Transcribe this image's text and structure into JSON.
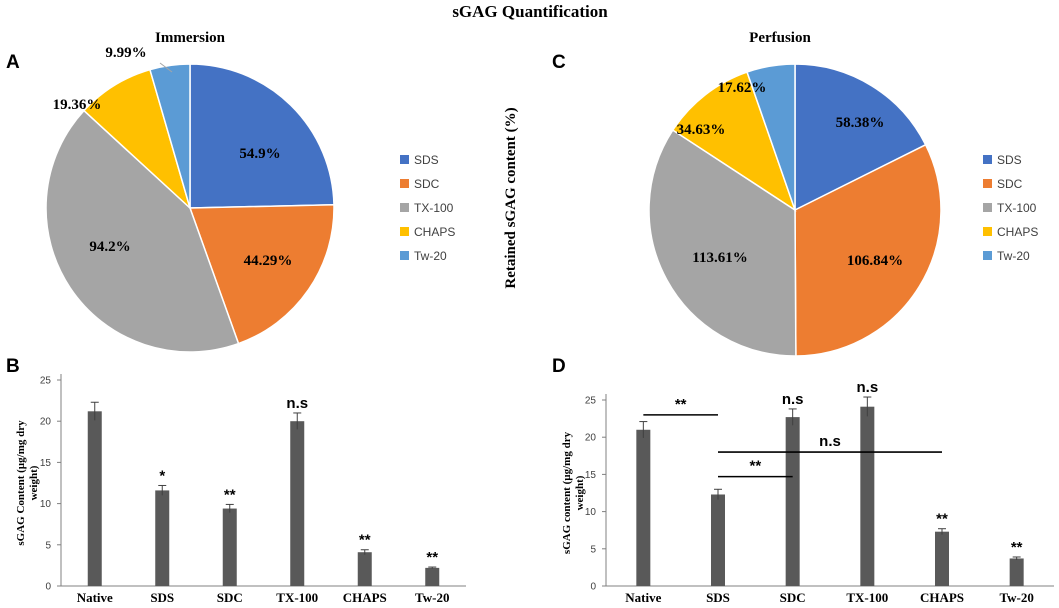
{
  "figure_title": "sGAG Quantification",
  "shared_ylabel": "Retained sGAG content (%)",
  "colors": {
    "SDS": "#4472C4",
    "SDC": "#ED7D31",
    "TX-100": "#A5A5A5",
    "CHAPS": "#FFC000",
    "Tw-20": "#5B9BD5",
    "bar": "#595959",
    "axis": "#808080"
  },
  "chart_data": [
    {
      "panel": "A",
      "type": "pie",
      "title": "Immersion",
      "labels": [
        "SDS",
        "SDC",
        "TX-100",
        "CHAPS",
        "Tw-20"
      ],
      "values": [
        54.9,
        44.29,
        94.2,
        19.36,
        9.99
      ],
      "value_labels": [
        "54.9%",
        "44.29%",
        "94.2%",
        "19.36%",
        "9.99%"
      ],
      "legend_position": "right"
    },
    {
      "panel": "C",
      "type": "pie",
      "title": "Perfusion",
      "labels": [
        "SDS",
        "SDC",
        "TX-100",
        "CHAPS",
        "Tw-20"
      ],
      "values": [
        58.38,
        106.84,
        113.61,
        34.63,
        17.62
      ],
      "value_labels": [
        "58.38%",
        "106.84%",
        "113.61%",
        "34.63%",
        "17.62%"
      ],
      "legend_position": "right"
    },
    {
      "panel": "B",
      "type": "bar",
      "categories": [
        "Native",
        "SDS",
        "SDC",
        "TX-100",
        "CHAPS",
        "Tw-20"
      ],
      "values": [
        21.2,
        11.6,
        9.4,
        20.0,
        4.1,
        2.2
      ],
      "errors": [
        1.1,
        0.6,
        0.5,
        1.0,
        0.3,
        0.1
      ],
      "annotations": [
        "",
        "*",
        "**",
        "n.s",
        "**",
        "**"
      ],
      "ylabel": "sGAG Content (µg/mg dry weight)",
      "ylim": [
        0,
        25
      ],
      "yticks": [
        0,
        5,
        10,
        15,
        20,
        25
      ]
    },
    {
      "panel": "D",
      "type": "bar",
      "categories": [
        "Native",
        "SDS",
        "SDC",
        "TX-100",
        "CHAPS",
        "Tw-20"
      ],
      "values": [
        21.0,
        12.3,
        22.7,
        24.1,
        7.3,
        3.7
      ],
      "errors": [
        1.1,
        0.7,
        1.1,
        1.3,
        0.4,
        0.2
      ],
      "annotations": [
        "",
        "",
        "n.s",
        "n.s",
        "**",
        "**"
      ],
      "comparisons": [
        {
          "from": "Native",
          "to": "SDS",
          "y": 23.0,
          "label": "**"
        },
        {
          "from": "SDS",
          "to": "CHAPS",
          "y": 18.0,
          "label": "n.s"
        },
        {
          "from": "SDS",
          "to": "SDC",
          "y": 14.7,
          "label": "**"
        }
      ],
      "ylabel": "sGAG content (µg/mg dry weight)",
      "ylim": [
        0,
        25
      ],
      "yticks": [
        0,
        5,
        10,
        15,
        20,
        25
      ]
    }
  ]
}
